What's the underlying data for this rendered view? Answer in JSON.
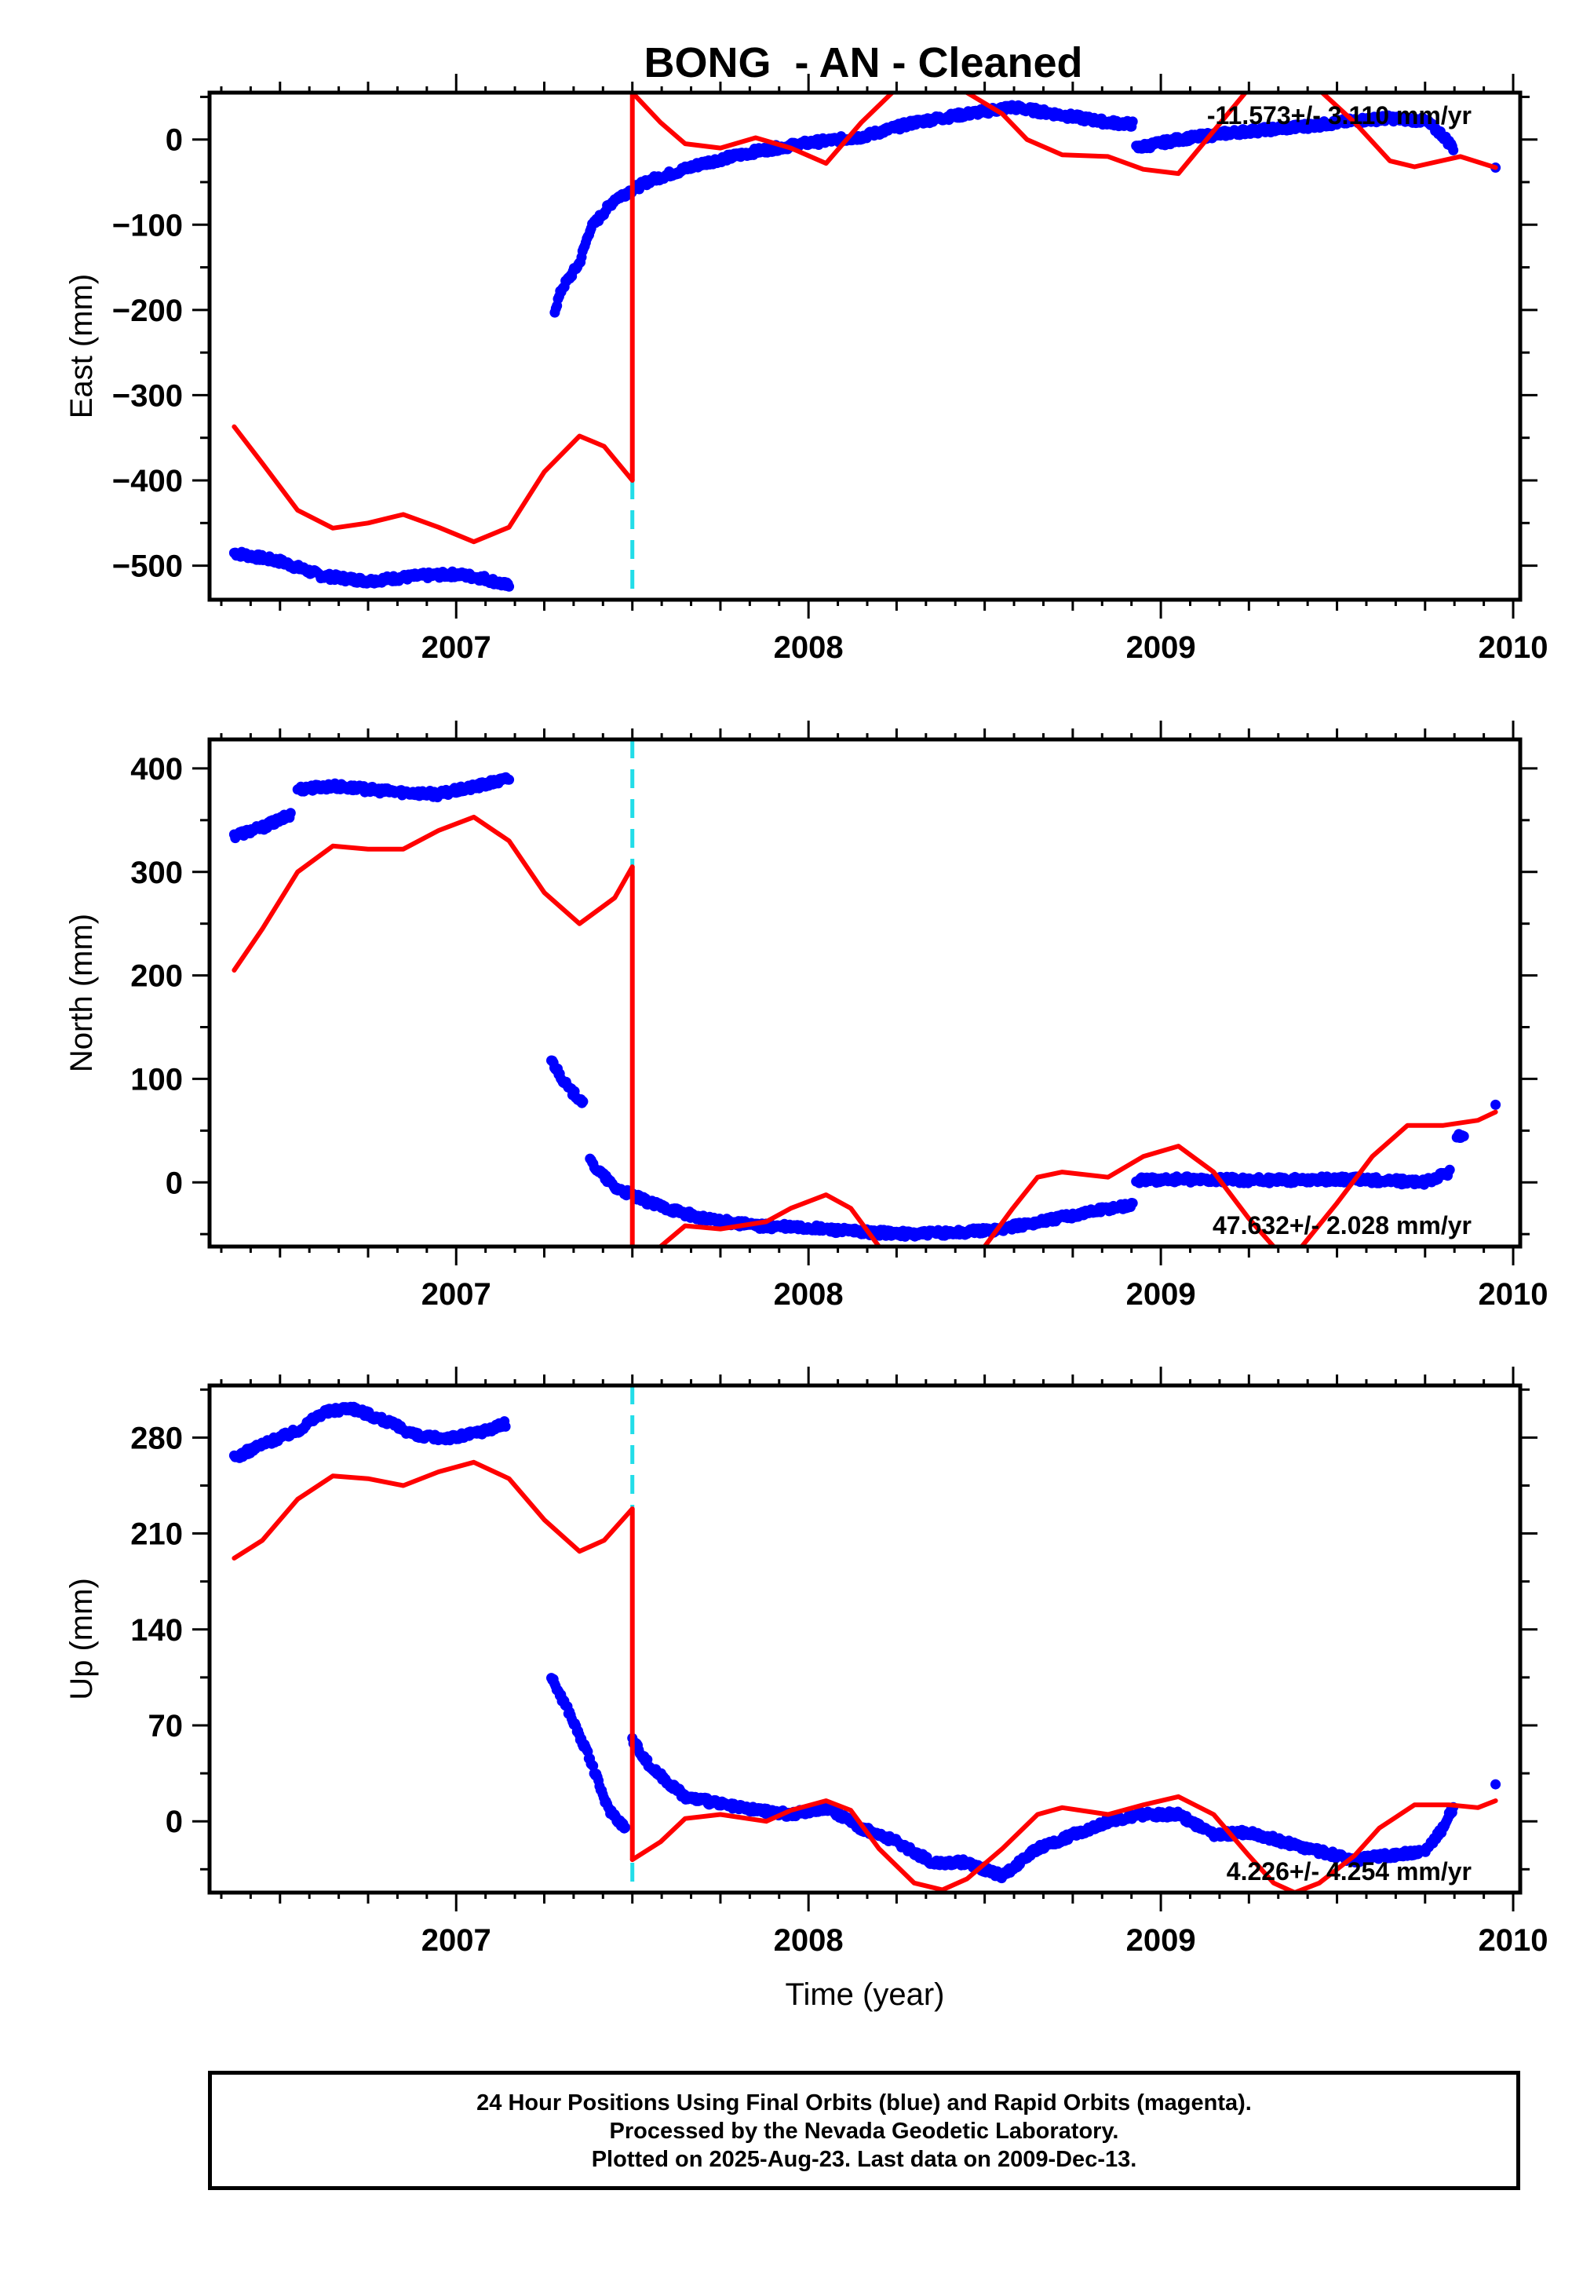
{
  "title": "BONG  - AN - Cleaned",
  "colors": {
    "data": "#0000ff",
    "model": "#ff0000",
    "offset_line": "#22dde8",
    "frame": "#000000"
  },
  "chart_data": [
    {
      "type": "scatter",
      "panel": "east",
      "ylabel": "East (mm)",
      "xlabel": "",
      "xlim": [
        2006.3,
        2010.02
      ],
      "ylim": [
        -540,
        55
      ],
      "xticks": [
        2007,
        2008,
        2009,
        2010
      ],
      "yticks": [
        -500,
        -400,
        -300,
        -200,
        -100,
        0
      ],
      "offset_epoch": 2007.5,
      "rate_label": "-11.573+/- 3.110 mm/yr",
      "rate_position": "top-right",
      "data_knots": [
        [
          2006.37,
          -485
        ],
        [
          2006.5,
          -495
        ],
        [
          2006.62,
          -512
        ],
        [
          2006.75,
          -518
        ],
        [
          2006.9,
          -512
        ],
        [
          2007.0,
          -510
        ],
        [
          2007.08,
          -515
        ],
        [
          2007.15,
          -524
        ],
        null,
        [
          2007.28,
          -200
        ],
        [
          2007.3,
          -175
        ],
        [
          2007.35,
          -145
        ],
        [
          2007.38,
          -105
        ],
        [
          2007.45,
          -70
        ],
        [
          2007.55,
          -48
        ],
        [
          2007.7,
          -28
        ],
        [
          2007.85,
          -14
        ],
        [
          2008.0,
          -4
        ],
        [
          2008.15,
          3
        ],
        [
          2008.3,
          20
        ],
        [
          2008.45,
          30
        ],
        [
          2008.58,
          38
        ],
        [
          2008.7,
          30
        ],
        [
          2008.85,
          20
        ],
        [
          2008.92,
          18
        ],
        null,
        [
          2008.93,
          -10
        ],
        [
          2009.05,
          0
        ],
        [
          2009.2,
          8
        ],
        [
          2009.4,
          15
        ],
        [
          2009.55,
          22
        ],
        [
          2009.65,
          25
        ],
        [
          2009.75,
          22
        ],
        [
          2009.8,
          5
        ],
        [
          2009.83,
          -10
        ],
        null,
        [
          2009.95,
          -33
        ]
      ],
      "model_knots": [
        [
          2006.37,
          -337
        ],
        [
          2006.45,
          -380
        ],
        [
          2006.55,
          -435
        ],
        [
          2006.65,
          -456
        ],
        [
          2006.75,
          -450
        ],
        [
          2006.85,
          -440
        ],
        [
          2006.95,
          -455
        ],
        [
          2007.05,
          -472
        ],
        [
          2007.15,
          -455
        ],
        [
          2007.25,
          -390
        ],
        [
          2007.35,
          -348
        ],
        [
          2007.42,
          -360
        ],
        [
          2007.5,
          -400
        ],
        null,
        [
          2007.5,
          55
        ],
        [
          2007.58,
          20
        ],
        [
          2007.65,
          -5
        ],
        [
          2007.75,
          -10
        ],
        [
          2007.85,
          2
        ],
        [
          2007.95,
          -10
        ],
        [
          2008.05,
          -28
        ],
        [
          2008.15,
          20
        ],
        [
          2008.25,
          60
        ],
        null,
        [
          2008.45,
          55
        ],
        [
          2008.55,
          30
        ],
        [
          2008.62,
          0
        ],
        [
          2008.72,
          -18
        ],
        [
          2008.85,
          -20
        ],
        [
          2008.95,
          -35
        ],
        [
          2009.05,
          -40
        ],
        [
          2009.12,
          -5
        ],
        [
          2009.18,
          25
        ],
        [
          2009.25,
          60
        ],
        null,
        [
          2009.45,
          58
        ],
        [
          2009.55,
          20
        ],
        [
          2009.65,
          -25
        ],
        [
          2009.72,
          -32
        ],
        [
          2009.85,
          -20
        ],
        [
          2009.95,
          -33
        ]
      ]
    },
    {
      "type": "scatter",
      "panel": "north",
      "ylabel": "North (mm)",
      "xlabel": "",
      "xlim": [
        2006.3,
        2010.02
      ],
      "ylim": [
        -62,
        428
      ],
      "xticks": [
        2007,
        2008,
        2009,
        2010
      ],
      "yticks": [
        0,
        100,
        200,
        300,
        400
      ],
      "offset_epoch": 2007.5,
      "rate_label": "47.632+/- 2.028 mm/yr",
      "rate_position": "bottom-right",
      "data_knots": [
        [
          2006.37,
          335
        ],
        [
          2006.45,
          343
        ],
        [
          2006.53,
          355
        ],
        null,
        [
          2006.55,
          380
        ],
        [
          2006.65,
          383
        ],
        [
          2006.8,
          378
        ],
        [
          2006.95,
          375
        ],
        [
          2007.05,
          382
        ],
        [
          2007.15,
          390
        ],
        null,
        [
          2007.27,
          118
        ],
        [
          2007.32,
          90
        ],
        [
          2007.36,
          78
        ],
        null,
        [
          2007.38,
          20
        ],
        [
          2007.45,
          -5
        ],
        [
          2007.55,
          -20
        ],
        [
          2007.7,
          -35
        ],
        [
          2007.85,
          -42
        ],
        [
          2008.0,
          -44
        ],
        [
          2008.15,
          -48
        ],
        [
          2008.3,
          -50
        ],
        [
          2008.45,
          -48
        ],
        [
          2008.55,
          -45
        ],
        [
          2008.7,
          -35
        ],
        [
          2008.85,
          -25
        ],
        [
          2008.92,
          -22
        ],
        null,
        [
          2008.93,
          2
        ],
        [
          2009.05,
          3
        ],
        [
          2009.3,
          2
        ],
        [
          2009.55,
          3
        ],
        [
          2009.75,
          0
        ],
        [
          2009.82,
          10
        ],
        null,
        [
          2009.84,
          45
        ],
        [
          2009.86,
          42
        ],
        null,
        [
          2009.95,
          75
        ]
      ],
      "model_knots": [
        [
          2006.37,
          205
        ],
        [
          2006.45,
          245
        ],
        [
          2006.55,
          300
        ],
        [
          2006.65,
          325
        ],
        [
          2006.75,
          322
        ],
        [
          2006.85,
          322
        ],
        [
          2006.95,
          340
        ],
        [
          2007.05,
          353
        ],
        [
          2007.15,
          330
        ],
        [
          2007.25,
          280
        ],
        [
          2007.35,
          250
        ],
        [
          2007.45,
          275
        ],
        [
          2007.5,
          305
        ],
        null,
        [
          2007.5,
          -62
        ],
        null,
        [
          2007.58,
          -62
        ],
        [
          2007.65,
          -42
        ],
        [
          2007.75,
          -45
        ],
        [
          2007.88,
          -38
        ],
        [
          2007.95,
          -25
        ],
        [
          2008.05,
          -12
        ],
        [
          2008.12,
          -25
        ],
        [
          2008.2,
          -62
        ],
        null,
        [
          2008.5,
          -62
        ],
        [
          2008.58,
          -25
        ],
        [
          2008.65,
          5
        ],
        [
          2008.72,
          10
        ],
        [
          2008.85,
          5
        ],
        [
          2008.95,
          25
        ],
        [
          2009.05,
          35
        ],
        [
          2009.15,
          10
        ],
        [
          2009.25,
          -35
        ],
        [
          2009.32,
          -62
        ],
        null,
        [
          2009.4,
          -62
        ],
        [
          2009.5,
          -20
        ],
        [
          2009.6,
          25
        ],
        [
          2009.7,
          55
        ],
        [
          2009.8,
          55
        ],
        [
          2009.9,
          60
        ],
        [
          2009.95,
          68
        ]
      ]
    },
    {
      "type": "scatter",
      "panel": "up",
      "ylabel": "Up (mm)",
      "xlabel": "Time (year)",
      "xlim": [
        2006.3,
        2010.02
      ],
      "ylim": [
        -52,
        318
      ],
      "xticks": [
        2007,
        2008,
        2009,
        2010
      ],
      "yticks": [
        0,
        70,
        140,
        210,
        280
      ],
      "offset_epoch": 2007.5,
      "rate_label": "4.226+/- 4.254 mm/yr",
      "rate_position": "bottom-right",
      "data_knots": [
        [
          2006.37,
          265
        ],
        [
          2006.45,
          275
        ],
        [
          2006.55,
          285
        ],
        [
          2006.62,
          298
        ],
        [
          2006.7,
          302
        ],
        [
          2006.8,
          292
        ],
        [
          2006.9,
          280
        ],
        [
          2007.0,
          280
        ],
        [
          2007.08,
          285
        ],
        [
          2007.14,
          290
        ],
        null,
        [
          2007.27,
          105
        ],
        [
          2007.32,
          80
        ],
        [
          2007.38,
          45
        ],
        [
          2007.43,
          10
        ],
        [
          2007.48,
          -5
        ],
        null,
        [
          2007.5,
          60
        ],
        [
          2007.55,
          40
        ],
        [
          2007.65,
          18
        ],
        [
          2007.8,
          10
        ],
        [
          2007.95,
          5
        ],
        [
          2008.05,
          10
        ],
        [
          2008.15,
          -5
        ],
        [
          2008.25,
          -15
        ],
        [
          2008.35,
          -30
        ],
        [
          2008.45,
          -30
        ],
        [
          2008.55,
          -40
        ],
        [
          2008.65,
          -20
        ],
        [
          2008.75,
          -10
        ],
        [
          2008.85,
          0
        ],
        [
          2008.95,
          5
        ],
        [
          2009.05,
          5
        ],
        [
          2009.15,
          -10
        ],
        [
          2009.25,
          -8
        ],
        [
          2009.35,
          -15
        ],
        [
          2009.45,
          -22
        ],
        [
          2009.55,
          -28
        ],
        [
          2009.65,
          -25
        ],
        [
          2009.75,
          -22
        ],
        [
          2009.8,
          -5
        ],
        [
          2009.83,
          10
        ],
        null,
        [
          2009.95,
          27
        ]
      ],
      "model_knots": [
        [
          2006.37,
          192
        ],
        [
          2006.45,
          205
        ],
        [
          2006.55,
          235
        ],
        [
          2006.65,
          252
        ],
        [
          2006.75,
          250
        ],
        [
          2006.85,
          245
        ],
        [
          2006.95,
          255
        ],
        [
          2007.05,
          262
        ],
        [
          2007.15,
          250
        ],
        [
          2007.25,
          220
        ],
        [
          2007.35,
          197
        ],
        [
          2007.42,
          205
        ],
        [
          2007.5,
          228
        ],
        null,
        [
          2007.5,
          -28
        ],
        [
          2007.58,
          -15
        ],
        [
          2007.65,
          2
        ],
        [
          2007.75,
          5
        ],
        [
          2007.88,
          0
        ],
        [
          2007.95,
          8
        ],
        [
          2008.05,
          15
        ],
        [
          2008.12,
          8
        ],
        [
          2008.2,
          -20
        ],
        [
          2008.3,
          -45
        ],
        [
          2008.38,
          -50
        ],
        [
          2008.45,
          -42
        ],
        [
          2008.55,
          -20
        ],
        [
          2008.65,
          5
        ],
        [
          2008.72,
          10
        ],
        [
          2008.85,
          5
        ],
        [
          2008.95,
          12
        ],
        [
          2009.05,
          18
        ],
        [
          2009.15,
          5
        ],
        [
          2009.25,
          -25
        ],
        [
          2009.32,
          -45
        ],
        [
          2009.38,
          -52
        ],
        [
          2009.45,
          -45
        ],
        [
          2009.55,
          -25
        ],
        [
          2009.62,
          -5
        ],
        [
          2009.72,
          12
        ],
        [
          2009.82,
          12
        ],
        [
          2009.9,
          10
        ],
        [
          2009.95,
          15
        ]
      ]
    }
  ],
  "footer": {
    "line1": "24 Hour Positions Using Final Orbits (blue) and Rapid Orbits (magenta).",
    "line2": "Processed by the Nevada Geodetic Laboratory.",
    "line3": "Plotted on 2025-Aug-23. Last data on 2009-Dec-13."
  }
}
